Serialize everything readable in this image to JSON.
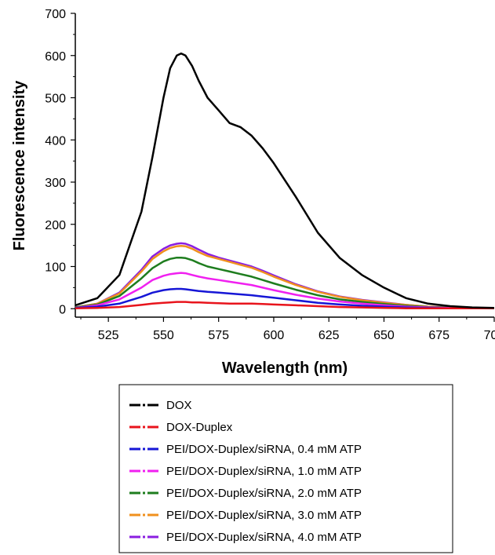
{
  "chart_data": {
    "type": "line",
    "xlabel": "Wavelength (nm)",
    "ylabel": "Fluorescence intensity",
    "xlim": [
      510,
      700
    ],
    "ylim": [
      -20,
      700
    ],
    "xticks": [
      525,
      550,
      575,
      600,
      625,
      650,
      675,
      700
    ],
    "yticks": [
      0,
      100,
      200,
      300,
      400,
      500,
      600,
      700
    ],
    "legend_position": "bottom",
    "x": [
      510,
      520,
      530,
      540,
      545,
      550,
      553,
      556,
      558,
      560,
      563,
      566,
      570,
      575,
      580,
      585,
      590,
      595,
      600,
      610,
      620,
      630,
      640,
      650,
      660,
      670,
      680,
      690,
      700
    ],
    "series": [
      {
        "name": "DOX",
        "color": "#000000",
        "values": [
          8,
          25,
          80,
          230,
          360,
          500,
          570,
          600,
          605,
          600,
          575,
          540,
          500,
          470,
          440,
          430,
          410,
          380,
          345,
          265,
          180,
          120,
          80,
          50,
          25,
          12,
          6,
          3,
          2
        ]
      },
      {
        "name": "DOX-Duplex",
        "color": "#e8141c",
        "values": [
          1,
          2,
          4,
          9,
          12,
          14,
          15,
          16,
          16,
          16,
          15,
          15,
          14,
          13,
          12,
          12,
          12,
          11,
          10,
          8,
          6,
          4,
          3,
          2,
          1,
          1,
          1,
          1,
          1
        ]
      },
      {
        "name": "PEI/DOX-Duplex/siRNA, 0.4 mM ATP",
        "color": "#1616d6",
        "values": [
          2,
          5,
          12,
          28,
          38,
          44,
          46,
          47,
          47,
          46,
          44,
          42,
          40,
          38,
          36,
          34,
          32,
          29,
          26,
          20,
          14,
          10,
          7,
          5,
          3,
          2,
          1,
          1,
          1
        ]
      },
      {
        "name": "PEI/DOX-Duplex/siRNA, 1.0 mM ATP",
        "color": "#f020f0",
        "values": [
          2,
          8,
          22,
          50,
          68,
          78,
          82,
          84,
          85,
          84,
          80,
          76,
          72,
          68,
          64,
          60,
          56,
          50,
          44,
          33,
          24,
          17,
          12,
          8,
          5,
          3,
          2,
          1,
          1
        ]
      },
      {
        "name": "PEI/DOX-Duplex/siRNA, 2.0 mM ATP",
        "color": "#1e7d1e",
        "values": [
          3,
          10,
          30,
          72,
          96,
          112,
          118,
          121,
          121,
          120,
          115,
          108,
          100,
          94,
          88,
          82,
          76,
          68,
          60,
          45,
          32,
          22,
          16,
          11,
          7,
          4,
          3,
          2,
          1
        ]
      },
      {
        "name": "PEI/DOX-Duplex/siRNA, 3.0 mM ATP",
        "color": "#f0901e",
        "values": [
          3,
          12,
          36,
          88,
          118,
          136,
          144,
          148,
          149,
          148,
          142,
          134,
          125,
          118,
          111,
          104,
          97,
          87,
          76,
          56,
          40,
          28,
          20,
          14,
          9,
          5,
          3,
          2,
          1
        ]
      },
      {
        "name": "PEI/DOX-Duplex/siRNA, 4.0 mM ATP",
        "color": "#8a1ee0",
        "values": [
          3,
          12,
          38,
          92,
          124,
          142,
          150,
          154,
          155,
          154,
          148,
          140,
          130,
          121,
          114,
          107,
          100,
          90,
          79,
          58,
          41,
          29,
          21,
          15,
          9,
          5,
          3,
          2,
          1
        ]
      }
    ]
  }
}
